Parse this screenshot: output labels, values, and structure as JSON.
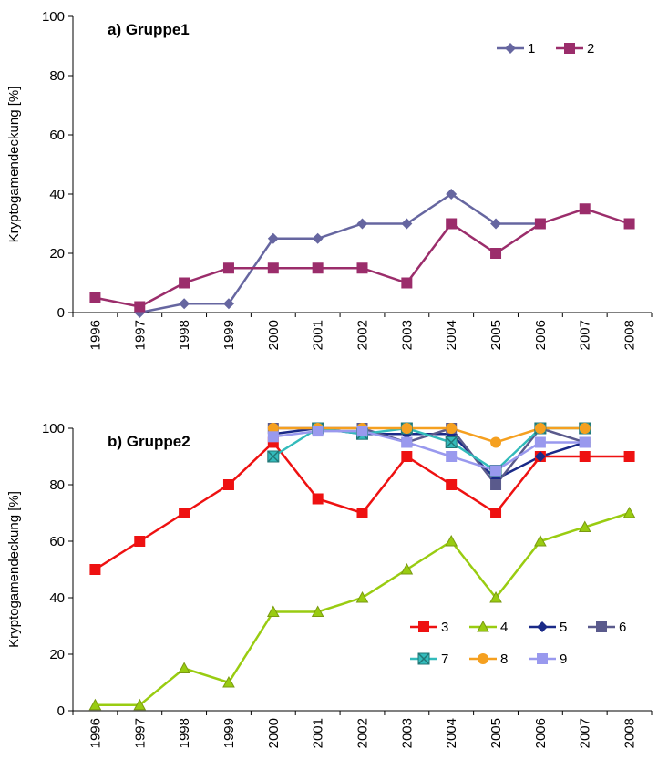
{
  "chart_data": [
    {
      "type": "line",
      "title": "a) Gruppe1",
      "y_label": "Kryptogamendeckung [%]",
      "categories": [
        "1996",
        "1997",
        "1998",
        "1999",
        "2000",
        "2001",
        "2002",
        "2003",
        "2004",
        "2005",
        "2006",
        "2007",
        "2008"
      ],
      "ylim": [
        0,
        100
      ],
      "yticks": [
        0,
        20,
        40,
        60,
        80,
        100
      ],
      "legend": "top-right",
      "series": [
        {
          "name": "1",
          "color": "#6666a0",
          "marker": "diamond",
          "values": [
            null,
            0,
            3,
            3,
            25,
            25,
            30,
            30,
            40,
            30,
            30,
            null,
            null
          ]
        },
        {
          "name": "2",
          "color": "#9b2d6b",
          "marker": "square",
          "values": [
            5,
            2,
            10,
            15,
            15,
            15,
            15,
            10,
            30,
            20,
            30,
            35,
            30
          ]
        }
      ]
    },
    {
      "type": "line",
      "title": "b) Gruppe2",
      "y_label": "Kryptogamendeckung [%]",
      "categories": [
        "1996",
        "1997",
        "1998",
        "1999",
        "2000",
        "2001",
        "2002",
        "2003",
        "2004",
        "2005",
        "2006",
        "2007",
        "2008"
      ],
      "ylim": [
        0,
        100
      ],
      "yticks": [
        0,
        20,
        40,
        60,
        80,
        100
      ],
      "legend": "bottom-right",
      "series": [
        {
          "name": "3",
          "color": "#ee1111",
          "marker": "square",
          "values": [
            50,
            60,
            70,
            80,
            95,
            75,
            70,
            90,
            80,
            70,
            90,
            90,
            90
          ]
        },
        {
          "name": "4",
          "color": "#99cc11",
          "marker": "triangle",
          "values": [
            2,
            2,
            15,
            10,
            35,
            35,
            40,
            50,
            60,
            40,
            60,
            65,
            70
          ]
        },
        {
          "name": "5",
          "color": "#1a2a88",
          "marker": "diamond",
          "values": [
            null,
            null,
            null,
            null,
            98,
            100,
            98,
            98,
            98,
            82,
            90,
            95,
            null
          ]
        },
        {
          "name": "6",
          "color": "#5a5a8c",
          "marker": "square",
          "values": [
            null,
            null,
            null,
            null,
            100,
            100,
            100,
            95,
            100,
            80,
            100,
            95,
            null
          ]
        },
        {
          "name": "7",
          "color": "#33bbbb",
          "marker": "xsquare",
          "values": [
            null,
            null,
            null,
            null,
            90,
            100,
            98,
            100,
            95,
            85,
            100,
            100,
            null
          ]
        },
        {
          "name": "8",
          "color": "#f5a020",
          "marker": "circle",
          "values": [
            null,
            null,
            null,
            null,
            100,
            100,
            100,
            100,
            100,
            95,
            100,
            100,
            null
          ]
        },
        {
          "name": "9",
          "color": "#9999ee",
          "marker": "square",
          "values": [
            null,
            null,
            null,
            null,
            97,
            99,
            99,
            95,
            90,
            85,
            95,
            95,
            null
          ]
        }
      ]
    }
  ]
}
